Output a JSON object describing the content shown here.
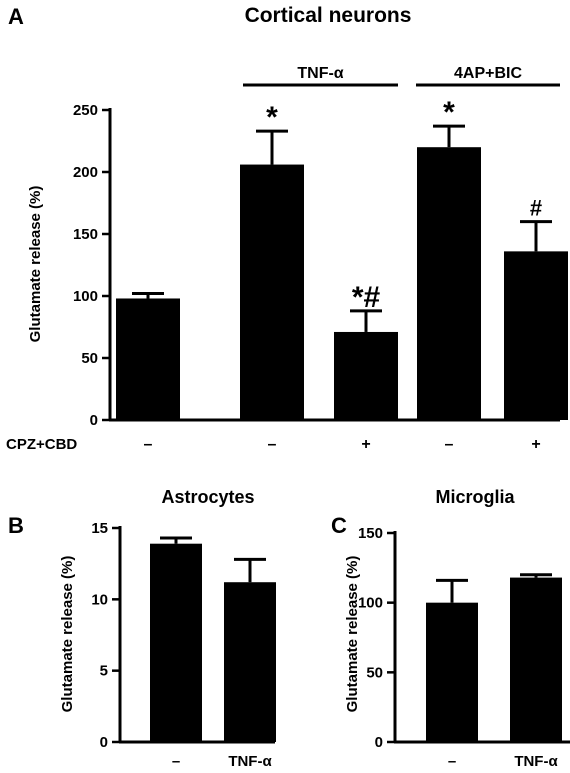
{
  "chart_data": [
    {
      "panel_letter": "A",
      "type": "bar",
      "title": "Cortical neurons",
      "ylabel": "Glutamate release (%)",
      "ylim": [
        0,
        250
      ],
      "yticks": [
        0,
        50,
        100,
        150,
        200,
        250
      ],
      "row_label": "CPZ+CBD",
      "categories": [
        "–",
        "–",
        "+",
        "–",
        "+"
      ],
      "groups": [
        {
          "label": "TNF-α",
          "bars": [
            1,
            2
          ]
        },
        {
          "label": "4AP+BIC",
          "bars": [
            3,
            4
          ]
        }
      ],
      "values": [
        98,
        206,
        71,
        220,
        136
      ],
      "errors": [
        4,
        27,
        17,
        17,
        24
      ],
      "annotations": [
        "",
        "*",
        "*#",
        "*",
        "#"
      ]
    },
    {
      "panel_letter": "B",
      "type": "bar",
      "title": "Astrocytes",
      "ylabel": "Glutamate release (%)",
      "ylim": [
        0,
        15
      ],
      "yticks": [
        0,
        5,
        10,
        15
      ],
      "categories": [
        "–",
        "TNF-α"
      ],
      "values": [
        13.9,
        11.2
      ],
      "errors": [
        0.4,
        1.6
      ]
    },
    {
      "panel_letter": "C",
      "type": "bar",
      "title": "Microglia",
      "ylabel": "Glutamate release (%)",
      "ylim": [
        0,
        150
      ],
      "yticks": [
        0,
        50,
        100,
        150
      ],
      "categories": [
        "–",
        "TNF-α"
      ],
      "values": [
        100,
        118
      ],
      "errors": [
        16,
        2
      ]
    }
  ]
}
